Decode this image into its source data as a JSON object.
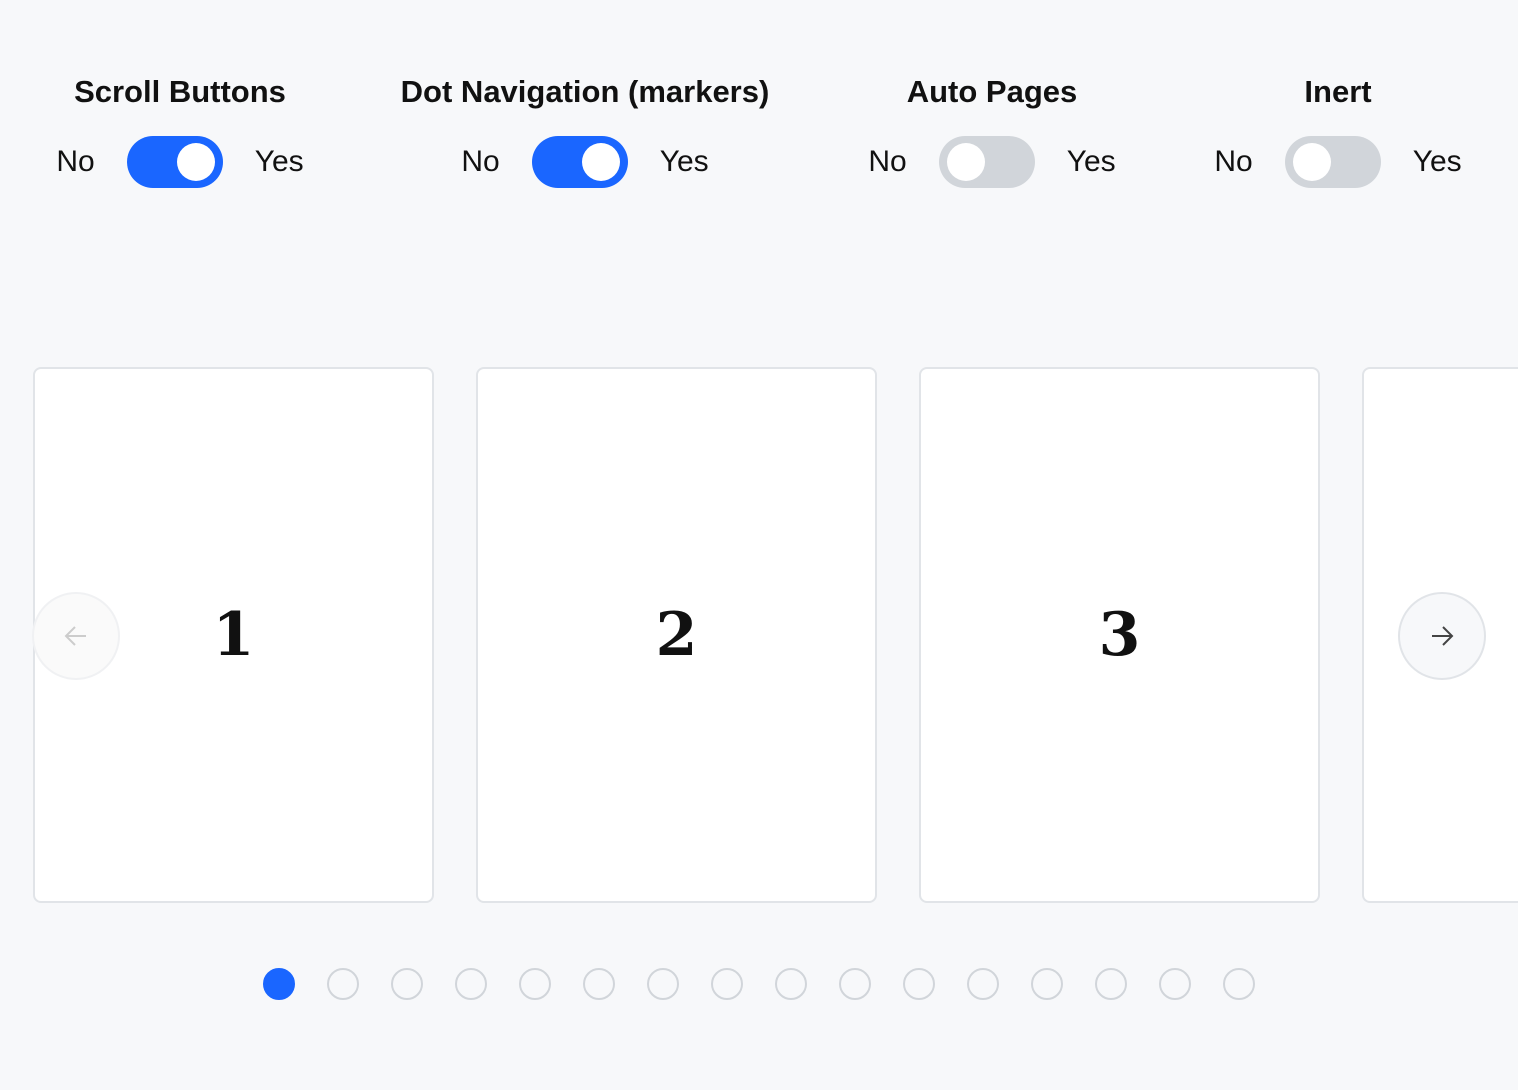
{
  "controls": [
    {
      "title": "Scroll Buttons",
      "no": "No",
      "yes": "Yes",
      "on": true
    },
    {
      "title": "Dot Navigation (markers)",
      "no": "No",
      "yes": "Yes",
      "on": true
    },
    {
      "title": "Auto Pages",
      "no": "No",
      "yes": "Yes",
      "on": false
    },
    {
      "title": "Inert",
      "no": "No",
      "yes": "Yes",
      "on": false
    }
  ],
  "carousel": {
    "slides": [
      "1",
      "2",
      "3",
      ""
    ],
    "prev_icon": "arrow-left-icon",
    "next_icon": "arrow-right-icon",
    "dot_count": 16,
    "active_dot": 0
  },
  "colors": {
    "accent": "#1a66ff",
    "off": "#d1d5da"
  }
}
